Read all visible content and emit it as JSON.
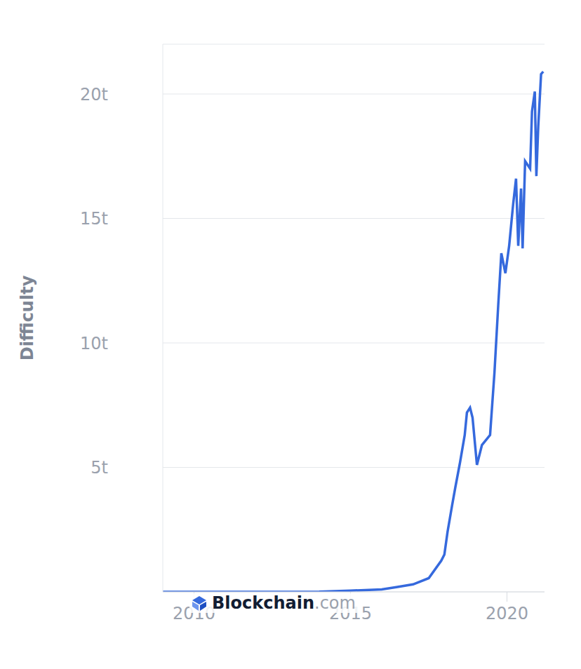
{
  "chart_data": {
    "type": "line",
    "y_label": "Difficulty",
    "annotation": "Blockchain.com",
    "x": [
      2009.0,
      2011.0,
      2013.0,
      2014.0,
      2015.0,
      2016.0,
      2016.5,
      2017.0,
      2017.5,
      2017.9,
      2018.0,
      2018.1,
      2018.25,
      2018.35,
      2018.5,
      2018.65,
      2018.72,
      2018.82,
      2018.9,
      2019.04,
      2019.2,
      2019.46,
      2019.6,
      2019.72,
      2019.82,
      2019.95,
      2020.07,
      2020.2,
      2020.29,
      2020.36,
      2020.45,
      2020.5,
      2020.58,
      2020.74,
      2020.8,
      2020.89,
      2020.94,
      2021.0,
      2021.09,
      2021.16
    ],
    "values": [
      0,
      0,
      0,
      0.01,
      0.05,
      0.1,
      0.2,
      0.3,
      0.55,
      1.25,
      1.5,
      2.4,
      3.5,
      4.2,
      5.2,
      6.3,
      7.2,
      7.4,
      7.0,
      5.1,
      5.9,
      6.3,
      8.8,
      11.5,
      13.6,
      12.8,
      13.9,
      15.6,
      16.6,
      13.9,
      16.2,
      13.8,
      17.3,
      17.0,
      19.3,
      20.1,
      16.7,
      18.7,
      20.8,
      20.9
    ],
    "color": "#3569dd",
    "xlim": [
      2009,
      2021.2
    ],
    "xticks": [
      2010,
      2015,
      2020
    ],
    "ylim": [
      0,
      22
    ],
    "yticks": [
      {
        "value": 5,
        "label": "5t"
      },
      {
        "value": 10,
        "label": "10t"
      },
      {
        "value": 15,
        "label": "15t"
      },
      {
        "value": 20,
        "label": "20t"
      }
    ],
    "grid": true
  }
}
